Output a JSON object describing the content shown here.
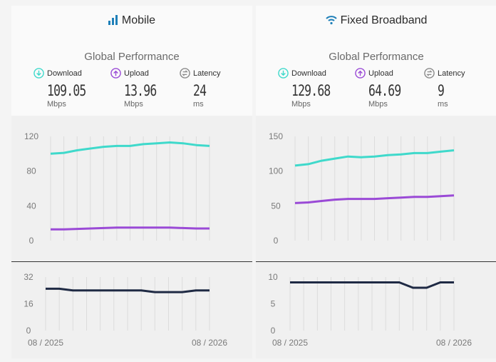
{
  "mobile": {
    "title": "Mobile",
    "section_title": "Global Performance",
    "download": {
      "label": "Download",
      "value": "109.05",
      "unit": "Mbps"
    },
    "upload": {
      "label": "Upload",
      "value": "13.96",
      "unit": "Mbps"
    },
    "latency": {
      "label": "Latency",
      "value": "24",
      "unit": "ms"
    }
  },
  "fixed": {
    "title": "Fixed Broadband",
    "section_title": "Global Performance",
    "download": {
      "label": "Download",
      "value": "129.68",
      "unit": "Mbps"
    },
    "upload": {
      "label": "Upload",
      "value": "64.69",
      "unit": "Mbps"
    },
    "latency": {
      "label": "Latency",
      "value": "9",
      "unit": "ms"
    }
  },
  "colors": {
    "download": "#3fd9cb",
    "upload": "#9a4ad6",
    "latency": "#1f2a44",
    "mobile_icon": "#1e7fb8",
    "fixed_icon": "#1e7fb8"
  },
  "chart_data": [
    {
      "type": "line",
      "panel": "Mobile",
      "x_tick_labels": [
        "08 / 2025",
        "08 / 2026"
      ],
      "ylim": [
        0,
        120
      ],
      "yticks": [
        0,
        40,
        80,
        120
      ],
      "series": [
        {
          "name": "Download",
          "values": [
            100,
            101,
            104,
            106,
            108,
            109,
            109,
            111,
            112,
            113,
            112,
            110,
            109
          ]
        },
        {
          "name": "Upload",
          "values": [
            13,
            13,
            13.5,
            14,
            14.5,
            15,
            15,
            15,
            15,
            15,
            14.5,
            14,
            14
          ]
        }
      ]
    },
    {
      "type": "line",
      "panel": "Mobile",
      "ylim": [
        0,
        32
      ],
      "yticks": [
        0,
        16,
        32
      ],
      "series": [
        {
          "name": "Latency",
          "values": [
            25,
            25,
            24,
            24,
            24,
            24,
            24,
            24,
            23,
            23,
            23,
            24,
            24
          ]
        }
      ]
    },
    {
      "type": "line",
      "panel": "Fixed Broadband",
      "x_tick_labels": [
        "08 / 2025",
        "08 / 2026"
      ],
      "ylim": [
        0,
        150
      ],
      "yticks": [
        0,
        50,
        100,
        150
      ],
      "series": [
        {
          "name": "Download",
          "values": [
            108,
            110,
            115,
            118,
            121,
            120,
            121,
            123,
            124,
            126,
            126,
            128,
            130
          ]
        },
        {
          "name": "Upload",
          "values": [
            54,
            55,
            57,
            59,
            60,
            60,
            60,
            61,
            62,
            63,
            63,
            64,
            65
          ]
        }
      ]
    },
    {
      "type": "line",
      "panel": "Fixed Broadband",
      "ylim": [
        0,
        10
      ],
      "yticks": [
        0,
        5,
        10
      ],
      "series": [
        {
          "name": "Latency",
          "values": [
            9,
            9,
            9,
            9,
            9,
            9,
            9,
            9,
            9,
            8,
            8,
            9,
            9
          ]
        }
      ]
    }
  ]
}
